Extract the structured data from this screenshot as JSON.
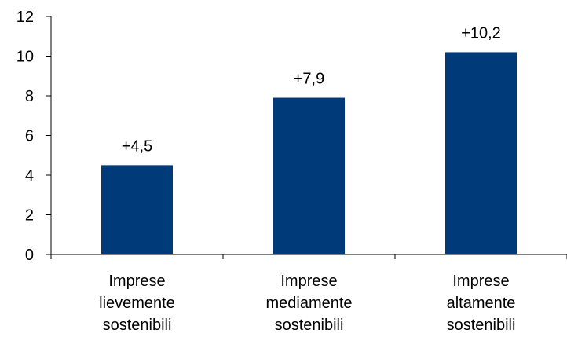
{
  "chart_data": {
    "type": "bar",
    "categories": [
      [
        "Imprese",
        "lievemente",
        "sostenibili"
      ],
      [
        "Imprese",
        "mediamente",
        "sostenibili"
      ],
      [
        "Imprese",
        "altamente",
        "sostenibili"
      ]
    ],
    "values": [
      4.5,
      7.9,
      10.2
    ],
    "data_labels": [
      "+4,5",
      "+7,9",
      "+10,2"
    ],
    "yticks": [
      0,
      2,
      4,
      6,
      8,
      10,
      12
    ],
    "ylim": [
      0,
      12
    ],
    "grid": false,
    "bar_color": "#003a78",
    "title": "",
    "xlabel": "",
    "ylabel": ""
  }
}
